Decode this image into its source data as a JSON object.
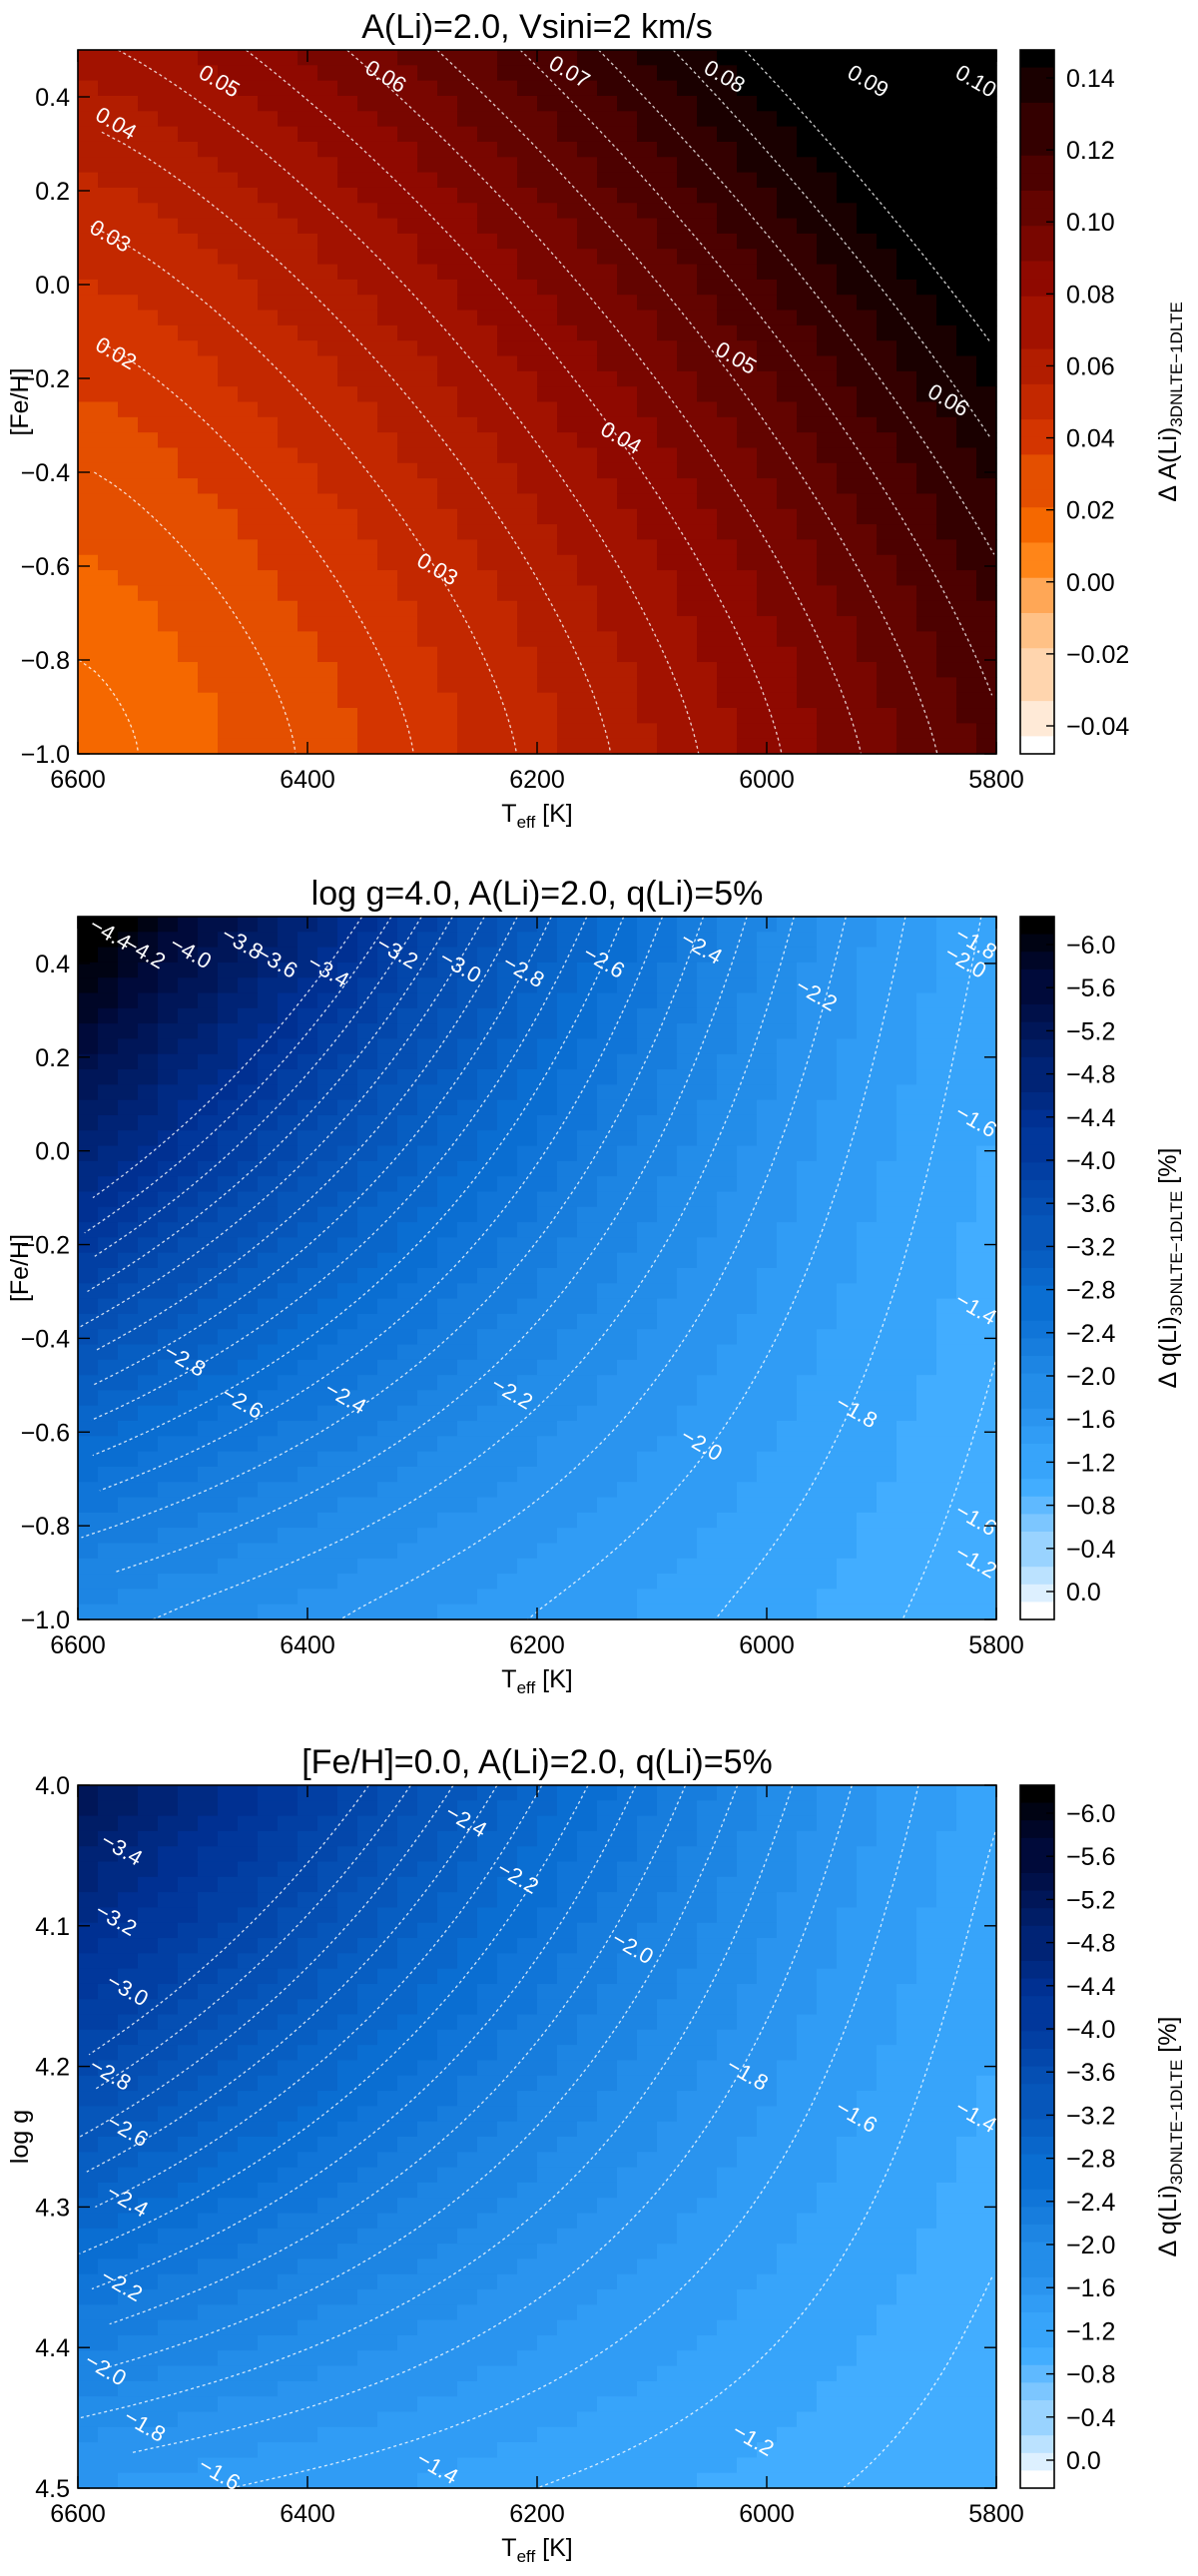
{
  "chart_data": [
    {
      "type": "heatmap",
      "id": "p1",
      "title": "A(Li)=2.0, Vsini=2 km/s",
      "ylabel": "[Fe/H]",
      "xlabel_main": "T",
      "xlabel_sub": "eff",
      "xlabel_unit": " [K]",
      "cbar_label_main": "Δ A(Li)",
      "cbar_label_sub": "3DNLTE−1DLTE",
      "cbar_label_unit": "",
      "xlim": [
        6600,
        5800
      ],
      "ylim": [
        -1.0,
        0.5
      ],
      "xticks": [
        "6600",
        "6400",
        "6200",
        "6000",
        "5800"
      ],
      "yticks": [
        "−1.0",
        "−0.8",
        "−0.6",
        "−0.4",
        "−0.2",
        "0.0",
        "0.2",
        "0.4"
      ],
      "cbar_range": [
        -0.04,
        0.14
      ],
      "cbar_ticks": [
        "0.14",
        "0.12",
        "0.10",
        "0.08",
        "0.06",
        "0.04",
        "0.02",
        "0.00",
        "−0.02",
        "−0.04"
      ],
      "colorscale": "red",
      "levels": [
        0.02,
        0.03,
        0.04,
        0.05,
        0.06,
        0.07,
        0.08,
        0.09,
        0.1,
        0.11,
        0.12,
        0.13,
        0.14
      ],
      "contour_labels": [
        {
          "text": "0.05",
          "teff": 6480,
          "y": 0.42
        },
        {
          "text": "0.06",
          "teff": 6335,
          "y": 0.43
        },
        {
          "text": "0.07",
          "teff": 6175,
          "y": 0.44
        },
        {
          "text": "0.08",
          "teff": 6040,
          "y": 0.43
        },
        {
          "text": "0.09",
          "teff": 5915,
          "y": 0.42
        },
        {
          "text": "0.10",
          "teff": 5815,
          "y": 0.42
        },
        {
          "text": "0.04",
          "teff": 6570,
          "y": 0.33
        },
        {
          "text": "0.03",
          "teff": 6575,
          "y": 0.09
        },
        {
          "text": "0.02",
          "teff": 6570,
          "y": -0.16
        },
        {
          "text": "0.05",
          "teff": 6030,
          "y": -0.17
        },
        {
          "text": "0.06",
          "teff": 5845,
          "y": -0.26
        },
        {
          "text": "0.04",
          "teff": 6130,
          "y": -0.34
        },
        {
          "text": "0.03",
          "teff": 6290,
          "y": -0.62
        }
      ]
    },
    {
      "type": "heatmap",
      "id": "p2",
      "title": "log g=4.0, A(Li)=2.0,  q(Li)=5%",
      "ylabel": "[Fe/H]",
      "xlabel_main": "T",
      "xlabel_sub": "eff",
      "xlabel_unit": " [K]",
      "cbar_label_main": "Δ q(Li)",
      "cbar_label_sub": "3DNLTE−1DLTE",
      "cbar_label_unit": " [%]",
      "xlim": [
        6600,
        5800
      ],
      "ylim": [
        -1.0,
        0.5
      ],
      "xticks": [
        "6600",
        "6400",
        "6200",
        "6000",
        "5800"
      ],
      "yticks": [
        "−1.0",
        "−0.8",
        "−0.6",
        "−0.4",
        "−0.2",
        "0.0",
        "0.2",
        "0.4"
      ],
      "cbar_range": [
        -6.2,
        0.0
      ],
      "cbar_ticks": [
        "−6.0",
        "−5.6",
        "−5.2",
        "−4.8",
        "−4.4",
        "−4.0",
        "−3.6",
        "−3.2",
        "−2.8",
        "−2.4",
        "−2.0",
        "−1.6",
        "−1.2",
        "−0.8",
        "−0.4",
        "0.0"
      ],
      "colorscale": "blue",
      "levels": [
        -1.2,
        -1.4,
        -1.6,
        -1.8,
        -2.0,
        -2.2,
        -2.4,
        -2.6,
        -2.8,
        -3.0,
        -3.2,
        -3.4,
        -3.6,
        -3.8,
        -4.0,
        -4.2,
        -4.4
      ],
      "contour_labels": [
        {
          "text": "−4.4",
          "teff": 6575,
          "y": 0.45
        },
        {
          "text": "−4.2",
          "teff": 6545,
          "y": 0.41
        },
        {
          "text": "−4.0",
          "teff": 6505,
          "y": 0.41
        },
        {
          "text": "−3.8",
          "teff": 6460,
          "y": 0.43
        },
        {
          "text": "−3.6",
          "teff": 6430,
          "y": 0.39
        },
        {
          "text": "−3.4",
          "teff": 6385,
          "y": 0.37
        },
        {
          "text": "−3.2",
          "teff": 6325,
          "y": 0.41
        },
        {
          "text": "−3.0",
          "teff": 6270,
          "y": 0.38
        },
        {
          "text": "−2.8",
          "teff": 6215,
          "y": 0.37
        },
        {
          "text": "−2.6",
          "teff": 6145,
          "y": 0.39
        },
        {
          "text": "−2.4",
          "teff": 6060,
          "y": 0.42
        },
        {
          "text": "−2.2",
          "teff": 5960,
          "y": 0.32
        },
        {
          "text": "−2.0",
          "teff": 5830,
          "y": 0.39
        },
        {
          "text": "−1.8",
          "teff": 5610,
          "y": 0.43
        },
        {
          "text": "−1.6",
          "teff": 5610,
          "y": 0.05
        },
        {
          "text": "−1.4",
          "teff": 5635,
          "y": -0.35
        },
        {
          "text": "−1.2",
          "teff": 5620,
          "y": -0.89
        },
        {
          "text": "−2.8",
          "teff": 6510,
          "y": -0.46
        },
        {
          "text": "−2.6",
          "teff": 6460,
          "y": -0.55
        },
        {
          "text": "−2.4",
          "teff": 6370,
          "y": -0.54
        },
        {
          "text": "−2.2",
          "teff": 6225,
          "y": -0.53
        },
        {
          "text": "−2.0",
          "teff": 6060,
          "y": -0.64
        },
        {
          "text": "−1.8",
          "teff": 5925,
          "y": -0.57
        },
        {
          "text": "−1.6",
          "teff": 5770,
          "y": -0.8
        }
      ]
    },
    {
      "type": "heatmap",
      "id": "p3",
      "title": "[Fe/H]=0.0, A(Li)=2.0,  q(Li)=5%",
      "ylabel": "log g",
      "xlabel_main": "T",
      "xlabel_sub": "eff",
      "xlabel_unit": " [K]",
      "cbar_label_main": "Δ q(Li)",
      "cbar_label_sub": "3DNLTE−1DLTE",
      "cbar_label_unit": " [%]",
      "xlim": [
        6600,
        5800
      ],
      "ylim": [
        4.5,
        4.0
      ],
      "xticks": [
        "6600",
        "6400",
        "6200",
        "6000",
        "5800"
      ],
      "yticks": [
        "4.0",
        "4.1",
        "4.2",
        "4.3",
        "4.4",
        "4.5"
      ],
      "cbar_range": [
        -6.2,
        0.0
      ],
      "cbar_ticks": [
        "−6.0",
        "−5.6",
        "−5.2",
        "−4.8",
        "−4.4",
        "−4.0",
        "−3.6",
        "−3.2",
        "−2.8",
        "−2.4",
        "−2.0",
        "−1.6",
        "−1.2",
        "−0.8",
        "−0.4",
        "0.0"
      ],
      "colorscale": "blue",
      "levels": [
        -1.2,
        -1.4,
        -1.6,
        -1.8,
        -2.0,
        -2.2,
        -2.4,
        -2.6,
        -2.8,
        -3.0,
        -3.2,
        -3.4,
        -3.6,
        -3.8
      ],
      "contour_labels": [
        {
          "text": "−3.4",
          "teff": 6565,
          "y": 4.05
        },
        {
          "text": "−3.2",
          "teff": 6570,
          "y": 4.1
        },
        {
          "text": "−3.0",
          "teff": 6560,
          "y": 4.15
        },
        {
          "text": "−2.8",
          "teff": 6575,
          "y": 4.21
        },
        {
          "text": "−2.6",
          "teff": 6560,
          "y": 4.25
        },
        {
          "text": "−2.4",
          "teff": 6560,
          "y": 4.3
        },
        {
          "text": "−2.2",
          "teff": 6565,
          "y": 4.36
        },
        {
          "text": "−2.0",
          "teff": 6580,
          "y": 4.42
        },
        {
          "text": "−1.8",
          "teff": 6545,
          "y": 4.46
        },
        {
          "text": "−1.6",
          "teff": 6480,
          "y": 4.5
        },
        {
          "text": "−1.4",
          "teff": 6290,
          "y": 4.49
        },
        {
          "text": "−1.2",
          "teff": 6015,
          "y": 4.47
        },
        {
          "text": "−2.4",
          "teff": 6265,
          "y": 4.03
        },
        {
          "text": "−2.2",
          "teff": 6220,
          "y": 4.07
        },
        {
          "text": "−2.0",
          "teff": 6120,
          "y": 4.12
        },
        {
          "text": "−1.8",
          "teff": 6020,
          "y": 4.21
        },
        {
          "text": "−1.6",
          "teff": 5925,
          "y": 4.24
        },
        {
          "text": "−1.4",
          "teff": 5770,
          "y": 4.24
        }
      ]
    }
  ]
}
